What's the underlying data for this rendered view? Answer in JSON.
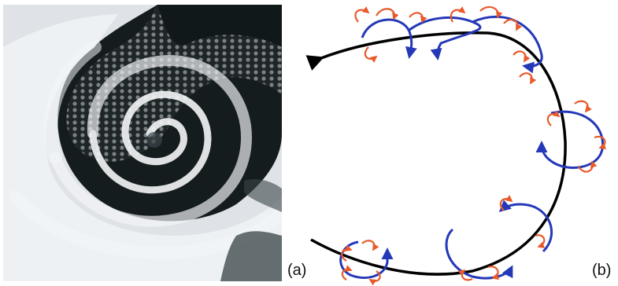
{
  "figure": {
    "panel_a": {
      "label": "(a)",
      "content": "satellite-cyclone-image"
    },
    "panel_b": {
      "label": "(b)",
      "content": "vortex-cascade-diagram"
    }
  },
  "colors": {
    "background": "#ffffff",
    "main_flow": "#000000",
    "medium_eddies": "#2438b8",
    "small_eddies": "#e85a2a",
    "ocean": "#121a1c",
    "cloud": "#eef1f4"
  }
}
